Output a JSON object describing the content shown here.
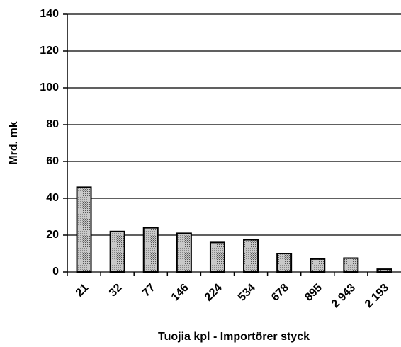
{
  "chart_data": {
    "type": "bar",
    "categories": [
      "21",
      "32",
      "77",
      "146",
      "224",
      "534",
      "678",
      "895",
      "2 943",
      "2 193"
    ],
    "values": [
      46,
      22,
      24,
      21,
      16,
      17.5,
      10,
      7,
      7.5,
      1.5
    ],
    "color": "#b0b0b0",
    "ylim": [
      0,
      140
    ],
    "yticks": [
      0,
      20,
      40,
      60,
      80,
      100,
      120,
      140
    ],
    "grid": true,
    "y_label": "Mrd. mk",
    "x_label": "Tuojia kpl - Importörer styck"
  }
}
